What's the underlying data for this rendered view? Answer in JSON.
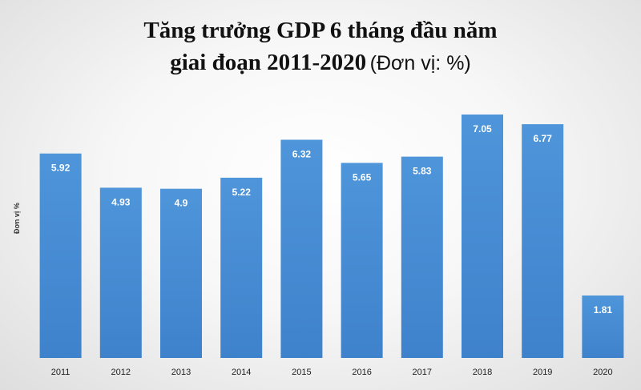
{
  "chart_data": {
    "type": "bar",
    "title_line1": "Tăng trưởng GDP 6 tháng đầu năm",
    "title_line2_main": "giai đoạn 2011-2020",
    "title_line2_unit": "(Đơn vị: %)",
    "ylabel": "Đơn vị %",
    "xlabel": "",
    "categories": [
      "2011",
      "2012",
      "2013",
      "2014",
      "2015",
      "2016",
      "2017",
      "2018",
      "2019",
      "2020"
    ],
    "values": [
      5.92,
      4.93,
      4.9,
      5.22,
      6.32,
      5.65,
      5.83,
      7.05,
      6.77,
      1.81
    ],
    "value_labels": [
      "5.92",
      "4.93",
      "4.9",
      "5.22",
      "6.32",
      "5.65",
      "5.83",
      "7.05",
      "6.77",
      "1.81"
    ],
    "ylim": [
      0,
      7.05
    ],
    "grid": false,
    "legend": "none",
    "bar_color": "#4a90d6"
  }
}
